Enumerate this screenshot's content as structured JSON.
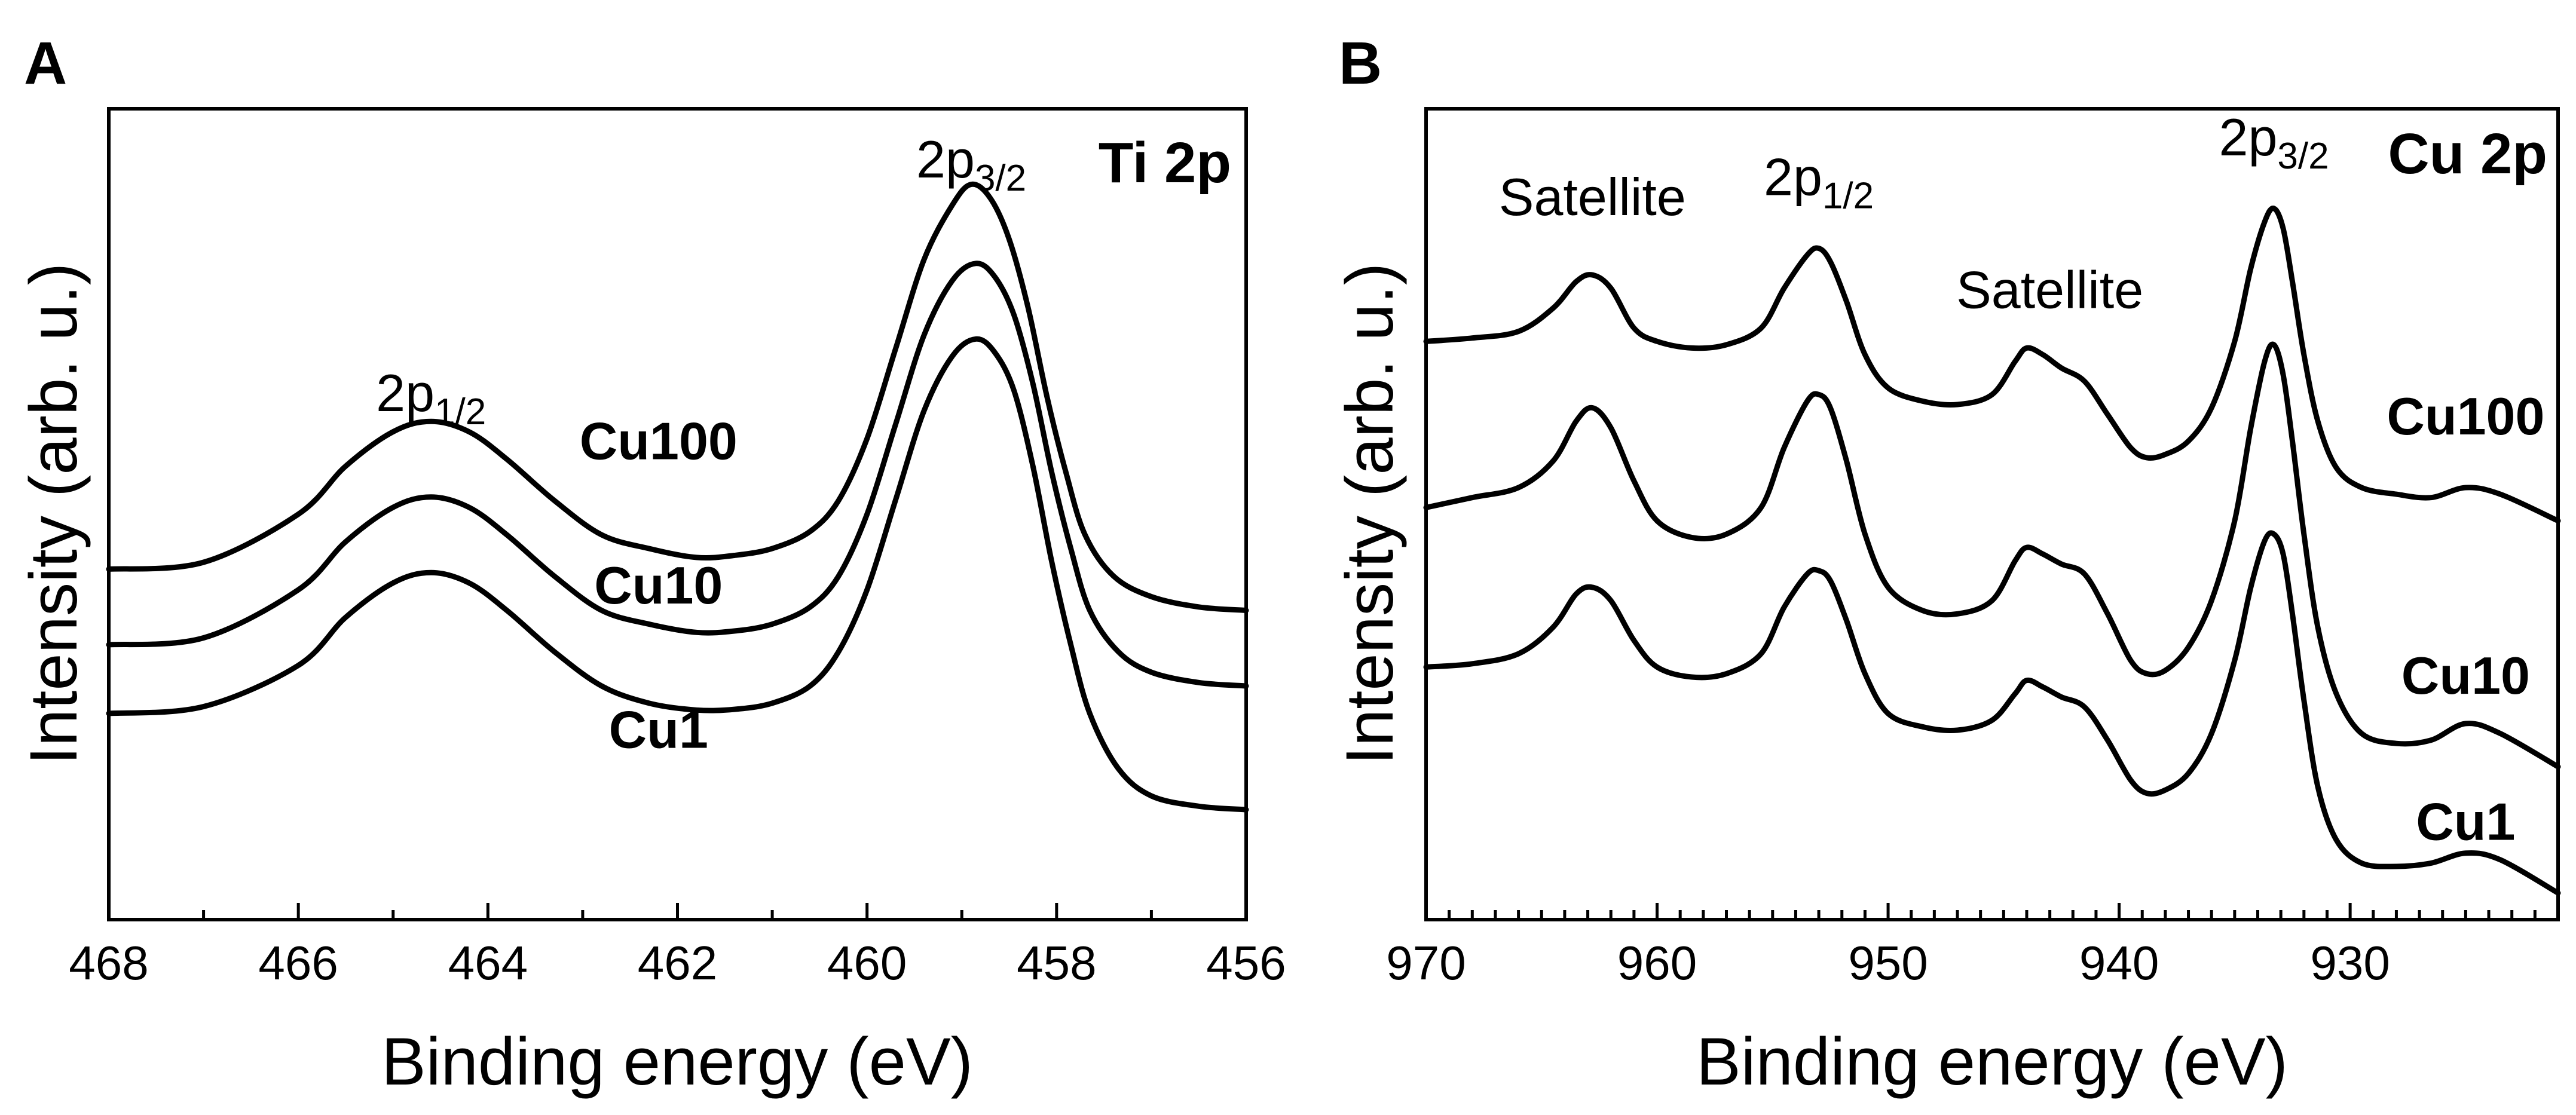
{
  "chart_data": [
    {
      "type": "line",
      "panel": "A",
      "title": "Ti 2p",
      "xlabel": "Binding energy (eV)",
      "ylabel": "Intensity (arb. u.)",
      "xlim": [
        468,
        456
      ],
      "x_reversed": true,
      "ylim": [
        0,
        1.18
      ],
      "y_ticks_shown": false,
      "xticks": [
        "468",
        "466",
        "464",
        "462",
        "460",
        "458",
        "456"
      ],
      "xtick_values": [
        468,
        466,
        464,
        462,
        460,
        458,
        456
      ],
      "minor_xticks": [
        467,
        465,
        463,
        461,
        459,
        457
      ],
      "annotations": [
        {
          "main": "2p",
          "sub": "1/2",
          "x": 464.6,
          "y": 0.74
        },
        {
          "main": "2p",
          "sub": "3/2",
          "x": 458.9,
          "y": 1.08
        }
      ],
      "series": [
        {
          "name": "Cu100",
          "label_x": 462.2,
          "label_y": 0.67,
          "points": [
            [
              468,
              0.51
            ],
            [
              467,
              0.52
            ],
            [
              466,
              0.59
            ],
            [
              465.5,
              0.66
            ],
            [
              465,
              0.71
            ],
            [
              464.6,
              0.725
            ],
            [
              464.2,
              0.71
            ],
            [
              463.8,
              0.67
            ],
            [
              463.3,
              0.61
            ],
            [
              462.8,
              0.56
            ],
            [
              462.3,
              0.54
            ],
            [
              461.8,
              0.527
            ],
            [
              461.4,
              0.53
            ],
            [
              461,
              0.54
            ],
            [
              460.6,
              0.565
            ],
            [
              460.3,
              0.61
            ],
            [
              460,
              0.7
            ],
            [
              459.7,
              0.83
            ],
            [
              459.4,
              0.96
            ],
            [
              459.1,
              1.04
            ],
            [
              458.9,
              1.07
            ],
            [
              458.7,
              1.05
            ],
            [
              458.5,
              0.99
            ],
            [
              458.3,
              0.89
            ],
            [
              458.1,
              0.76
            ],
            [
              457.9,
              0.65
            ],
            [
              457.7,
              0.56
            ],
            [
              457.4,
              0.5
            ],
            [
              457,
              0.47
            ],
            [
              456.5,
              0.455
            ],
            [
              456,
              0.45
            ]
          ]
        },
        {
          "name": "Cu10",
          "label_x": 462.2,
          "label_y": 0.46,
          "points": [
            [
              468,
              0.4
            ],
            [
              467,
              0.41
            ],
            [
              466,
              0.48
            ],
            [
              465.5,
              0.55
            ],
            [
              465,
              0.6
            ],
            [
              464.6,
              0.615
            ],
            [
              464.2,
              0.6
            ],
            [
              463.8,
              0.56
            ],
            [
              463.3,
              0.5
            ],
            [
              462.8,
              0.45
            ],
            [
              462.3,
              0.43
            ],
            [
              461.8,
              0.418
            ],
            [
              461.4,
              0.42
            ],
            [
              461,
              0.43
            ],
            [
              460.6,
              0.455
            ],
            [
              460.3,
              0.5
            ],
            [
              460,
              0.59
            ],
            [
              459.7,
              0.72
            ],
            [
              459.4,
              0.85
            ],
            [
              459.1,
              0.93
            ],
            [
              458.85,
              0.955
            ],
            [
              458.65,
              0.935
            ],
            [
              458.45,
              0.88
            ],
            [
              458.25,
              0.78
            ],
            [
              458.05,
              0.65
            ],
            [
              457.85,
              0.54
            ],
            [
              457.65,
              0.45
            ],
            [
              457.35,
              0.39
            ],
            [
              457,
              0.36
            ],
            [
              456.5,
              0.345
            ],
            [
              456,
              0.34
            ]
          ]
        },
        {
          "name": "Cu1",
          "label_x": 462.2,
          "label_y": 0.25,
          "points": [
            [
              468,
              0.3
            ],
            [
              467,
              0.31
            ],
            [
              466,
              0.37
            ],
            [
              465.5,
              0.44
            ],
            [
              465,
              0.49
            ],
            [
              464.6,
              0.505
            ],
            [
              464.2,
              0.49
            ],
            [
              463.8,
              0.45
            ],
            [
              463.3,
              0.39
            ],
            [
              462.8,
              0.34
            ],
            [
              462.3,
              0.315
            ],
            [
              461.8,
              0.305
            ],
            [
              461.4,
              0.306
            ],
            [
              461,
              0.315
            ],
            [
              460.6,
              0.34
            ],
            [
              460.3,
              0.39
            ],
            [
              460,
              0.48
            ],
            [
              459.7,
              0.61
            ],
            [
              459.4,
              0.74
            ],
            [
              459.1,
              0.82
            ],
            [
              458.85,
              0.845
            ],
            [
              458.65,
              0.825
            ],
            [
              458.45,
              0.77
            ],
            [
              458.25,
              0.66
            ],
            [
              458.05,
              0.52
            ],
            [
              457.85,
              0.4
            ],
            [
              457.65,
              0.3
            ],
            [
              457.35,
              0.22
            ],
            [
              457,
              0.18
            ],
            [
              456.5,
              0.165
            ],
            [
              456,
              0.16
            ]
          ]
        }
      ]
    },
    {
      "type": "line",
      "panel": "B",
      "title": "Cu 2p",
      "xlabel": "Binding energy (eV)",
      "ylabel": "Intensity (arb. u.)",
      "xlim": [
        970,
        921
      ],
      "x_reversed": true,
      "ylim": [
        0,
        1.22
      ],
      "y_ticks_shown": false,
      "xticks": [
        "970",
        "960",
        "950",
        "940",
        "930"
      ],
      "xtick_values": [
        970,
        960,
        950,
        940,
        930
      ],
      "minor_xticks": [
        969,
        968,
        967,
        966,
        965,
        964,
        963,
        962,
        961,
        959,
        958,
        957,
        956,
        955,
        954,
        953,
        952,
        951,
        949,
        948,
        947,
        946,
        945,
        944,
        943,
        942,
        941,
        939,
        938,
        937,
        936,
        935,
        934,
        933,
        932,
        931,
        929,
        928,
        927,
        926,
        925,
        924,
        923,
        922
      ],
      "annotations": [
        {
          "main": "Satellite",
          "x": 962.8,
          "y": 1.06
        },
        {
          "main": "2p",
          "sub": "1/2",
          "x": 953.0,
          "y": 1.09
        },
        {
          "main": "Satellite",
          "x": 943.0,
          "y": 0.92
        },
        {
          "main": "2p",
          "sub": "3/2",
          "x": 933.3,
          "y": 1.15
        }
      ],
      "series": [
        {
          "name": "Cu100",
          "label_x": 925.0,
          "label_y": 0.73,
          "points": [
            [
              970,
              0.87
            ],
            [
              968,
              0.875
            ],
            [
              966,
              0.885
            ],
            [
              964.5,
              0.92
            ],
            [
              963.5,
              0.96
            ],
            [
              962.8,
              0.97
            ],
            [
              962,
              0.95
            ],
            [
              961,
              0.89
            ],
            [
              960,
              0.87
            ],
            [
              958.5,
              0.86
            ],
            [
              957,
              0.865
            ],
            [
              955.5,
              0.89
            ],
            [
              954.5,
              0.95
            ],
            [
              953.5,
              1.0
            ],
            [
              953,
              1.01
            ],
            [
              952.5,
              0.99
            ],
            [
              951.8,
              0.93
            ],
            [
              951,
              0.85
            ],
            [
              950,
              0.8
            ],
            [
              948.5,
              0.78
            ],
            [
              947,
              0.775
            ],
            [
              945.5,
              0.79
            ],
            [
              944.5,
              0.84
            ],
            [
              944,
              0.86
            ],
            [
              943.3,
              0.85
            ],
            [
              942.5,
              0.83
            ],
            [
              941.5,
              0.81
            ],
            [
              940.5,
              0.76
            ],
            [
              939.5,
              0.71
            ],
            [
              938.8,
              0.695
            ],
            [
              938,
              0.7
            ],
            [
              937,
              0.72
            ],
            [
              936,
              0.77
            ],
            [
              935,
              0.87
            ],
            [
              934.3,
              0.98
            ],
            [
              933.7,
              1.05
            ],
            [
              933.3,
              1.07
            ],
            [
              932.9,
              1.04
            ],
            [
              932.5,
              0.96
            ],
            [
              932,
              0.85
            ],
            [
              931.4,
              0.75
            ],
            [
              930.6,
              0.68
            ],
            [
              929.5,
              0.65
            ],
            [
              928,
              0.64
            ],
            [
              926.5,
              0.635
            ],
            [
              925,
              0.65
            ],
            [
              923.5,
              0.64
            ],
            [
              921,
              0.6
            ]
          ]
        },
        {
          "name": "Cu10",
          "label_x": 925.0,
          "label_y": 0.34,
          "points": [
            [
              970,
              0.62
            ],
            [
              968,
              0.635
            ],
            [
              966,
              0.65
            ],
            [
              964.5,
              0.69
            ],
            [
              963.5,
              0.75
            ],
            [
              962.8,
              0.77
            ],
            [
              962,
              0.74
            ],
            [
              961,
              0.66
            ],
            [
              960,
              0.6
            ],
            [
              958.5,
              0.575
            ],
            [
              957,
              0.58
            ],
            [
              955.5,
              0.62
            ],
            [
              954.5,
              0.71
            ],
            [
              953.5,
              0.78
            ],
            [
              953,
              0.79
            ],
            [
              952.5,
              0.77
            ],
            [
              951.8,
              0.69
            ],
            [
              951,
              0.58
            ],
            [
              950,
              0.5
            ],
            [
              948.5,
              0.465
            ],
            [
              947,
              0.46
            ],
            [
              945.5,
              0.48
            ],
            [
              944.5,
              0.54
            ],
            [
              944,
              0.56
            ],
            [
              943.3,
              0.55
            ],
            [
              942.5,
              0.535
            ],
            [
              941.5,
              0.52
            ],
            [
              940.5,
              0.46
            ],
            [
              939.5,
              0.39
            ],
            [
              938.8,
              0.37
            ],
            [
              938,
              0.375
            ],
            [
              937,
              0.41
            ],
            [
              936,
              0.48
            ],
            [
              935,
              0.6
            ],
            [
              934.3,
              0.74
            ],
            [
              933.7,
              0.84
            ],
            [
              933.3,
              0.865
            ],
            [
              932.9,
              0.82
            ],
            [
              932.5,
              0.72
            ],
            [
              932,
              0.58
            ],
            [
              931.4,
              0.44
            ],
            [
              930.6,
              0.34
            ],
            [
              929.5,
              0.28
            ],
            [
              928,
              0.265
            ],
            [
              926.5,
              0.27
            ],
            [
              925,
              0.295
            ],
            [
              923.5,
              0.28
            ],
            [
              921,
              0.23
            ]
          ]
        },
        {
          "name": "Cu1",
          "label_x": 925.0,
          "label_y": 0.12,
          "points": [
            [
              970,
              0.38
            ],
            [
              968,
              0.385
            ],
            [
              966,
              0.4
            ],
            [
              964.5,
              0.44
            ],
            [
              963.5,
              0.49
            ],
            [
              962.8,
              0.5
            ],
            [
              962,
              0.48
            ],
            [
              961,
              0.42
            ],
            [
              960,
              0.38
            ],
            [
              958.5,
              0.365
            ],
            [
              957,
              0.37
            ],
            [
              955.5,
              0.4
            ],
            [
              954.5,
              0.47
            ],
            [
              953.5,
              0.52
            ],
            [
              953,
              0.525
            ],
            [
              952.5,
              0.51
            ],
            [
              951.8,
              0.45
            ],
            [
              951,
              0.37
            ],
            [
              950,
              0.31
            ],
            [
              948.5,
              0.29
            ],
            [
              947,
              0.285
            ],
            [
              945.5,
              0.3
            ],
            [
              944.5,
              0.34
            ],
            [
              944,
              0.36
            ],
            [
              943.3,
              0.35
            ],
            [
              942.5,
              0.335
            ],
            [
              941.5,
              0.32
            ],
            [
              940.5,
              0.27
            ],
            [
              939.5,
              0.21
            ],
            [
              938.8,
              0.19
            ],
            [
              938,
              0.195
            ],
            [
              937,
              0.22
            ],
            [
              936,
              0.28
            ],
            [
              935,
              0.39
            ],
            [
              934.3,
              0.5
            ],
            [
              933.7,
              0.57
            ],
            [
              933.3,
              0.58
            ],
            [
              932.9,
              0.55
            ],
            [
              932.5,
              0.46
            ],
            [
              932,
              0.33
            ],
            [
              931.4,
              0.2
            ],
            [
              930.6,
              0.12
            ],
            [
              929.5,
              0.085
            ],
            [
              928,
              0.08
            ],
            [
              926.5,
              0.085
            ],
            [
              925,
              0.1
            ],
            [
              923.5,
              0.09
            ],
            [
              921,
              0.04
            ]
          ]
        }
      ]
    }
  ]
}
